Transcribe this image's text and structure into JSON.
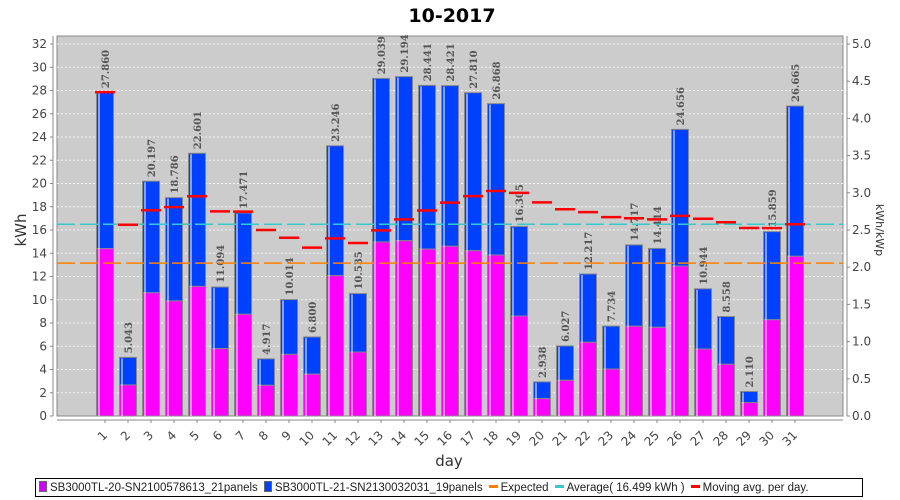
{
  "chart_data": {
    "type": "bar",
    "stacked": true,
    "title": "10-2017",
    "xlabel": "day",
    "ylabel": "kWh",
    "ylabel_right": "kWh/kWp",
    "ylim": [
      0,
      32
    ],
    "ylim_right": [
      0,
      5
    ],
    "yticks": [
      0,
      2,
      4,
      6,
      8,
      10,
      12,
      14,
      16,
      18,
      20,
      22,
      24,
      26,
      28,
      30,
      32
    ],
    "yticks_right": [
      "0.0",
      "0.5",
      "1.0",
      "1.5",
      "2.0",
      "2.5",
      "3.0",
      "3.5",
      "4.0",
      "4.5",
      "5.0"
    ],
    "grid": true,
    "legend_position": "bottom",
    "categories": [
      "1",
      "2",
      "3",
      "4",
      "5",
      "6",
      "7",
      "8",
      "9",
      "10",
      "11",
      "12",
      "13",
      "14",
      "15",
      "16",
      "17",
      "18",
      "19",
      "20",
      "21",
      "22",
      "23",
      "24",
      "25",
      "26",
      "27",
      "28",
      "29",
      "30",
      "31"
    ],
    "series": [
      {
        "name": "SB3000TL-20-SN2100578613_21panels",
        "color": "#ff00ff",
        "values": [
          14.4,
          2.67,
          10.6,
          9.9,
          11.15,
          5.8,
          8.75,
          2.64,
          5.3,
          3.6,
          12.07,
          5.5,
          14.97,
          15.08,
          14.36,
          14.6,
          14.22,
          13.85,
          8.6,
          1.49,
          3.07,
          6.34,
          4.04,
          7.72,
          7.63,
          12.9,
          5.76,
          4.45,
          1.15,
          8.28,
          13.74
        ]
      },
      {
        "name": "SB3000TL-21-SN2130032031_19panels",
        "color": "#0040ff",
        "values": [
          13.46,
          2.373,
          9.597,
          8.886,
          11.451,
          5.294,
          8.721,
          2.277,
          4.714,
          3.2,
          11.176,
          5.035,
          14.069,
          14.114,
          14.081,
          13.821,
          13.59,
          13.018,
          7.705,
          1.448,
          2.957,
          5.877,
          3.694,
          6.997,
          6.784,
          11.756,
          5.184,
          4.108,
          0.96,
          7.579,
          12.925
        ]
      }
    ],
    "totals": [
      "27.860",
      "5.043",
      "20.197",
      "18.786",
      "22.601",
      "11.094",
      "17.471",
      "4.917",
      "10.014",
      "6.800",
      "23.246",
      "10.535",
      "29.039",
      "29.194",
      "28.441",
      "28.421",
      "27.810",
      "26.868",
      "16.305",
      "2.938",
      "6.027",
      "12.217",
      "7.734",
      "14.717",
      "14.414",
      "24.656",
      "10.944",
      "8.558",
      "2.110",
      "15.859",
      "26.665"
    ],
    "expected": {
      "name": "Expected",
      "value": 13.15,
      "color": "#ff8000"
    },
    "average": {
      "name": "Average( 16.499 kWh )",
      "value": 16.499,
      "color": "#33cccc"
    },
    "moving_avg": {
      "name": "Moving avg. per day.",
      "color": "#ff0000",
      "values": [
        27.86,
        16.45,
        17.7,
        17.97,
        18.9,
        17.6,
        17.58,
        16.0,
        15.33,
        14.48,
        15.28,
        14.88,
        15.97,
        16.91,
        17.68,
        18.35,
        18.91,
        19.35,
        19.19,
        18.38,
        17.79,
        17.54,
        17.11,
        17.01,
        16.91,
        17.21,
        16.97,
        16.67,
        16.17,
        16.16,
        16.5
      ]
    }
  }
}
